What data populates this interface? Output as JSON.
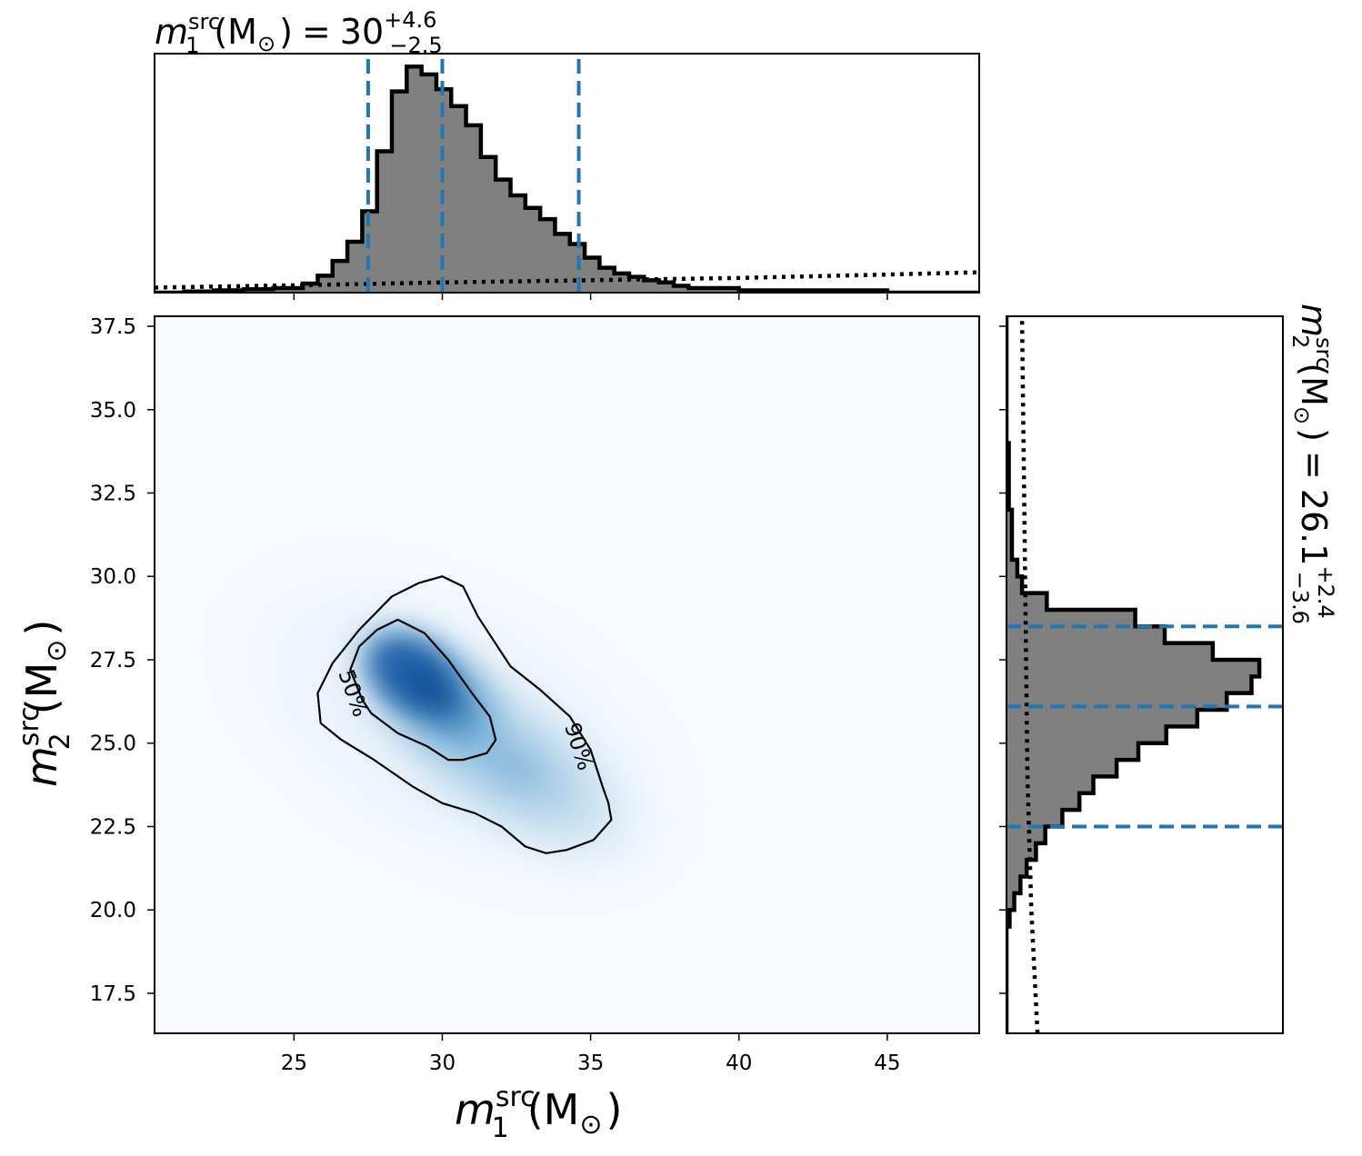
{
  "colors": {
    "hist_fill": "#808080",
    "hist_edge": "#000000",
    "quantile_line": "#1f77b4",
    "density_low": "#f7fbff",
    "density_high": "#08519c",
    "contour": "#000000"
  },
  "chart_data": [
    {
      "id": "m1_marginal",
      "type": "histogram",
      "title": {
        "base": "m",
        "sub": "1",
        "sup": "src",
        "unit": "(M",
        "odot": "⊙",
        "close": ")",
        "eq": "=",
        "median": "30",
        "plus": "+4.6",
        "minus": "−2.5"
      },
      "xlim": [
        20.3,
        48.1
      ],
      "x_ticks": [
        25,
        30,
        35,
        40,
        45
      ],
      "bins": [
        [
          20.3,
          0.0
        ],
        [
          21.3,
          0.1
        ],
        [
          22.3,
          0.2
        ],
        [
          23.3,
          0.3
        ],
        [
          24.3,
          0.4
        ],
        [
          25.3,
          0.8
        ],
        [
          25.8,
          1.5
        ],
        [
          26.3,
          2.8
        ],
        [
          26.8,
          4.5
        ],
        [
          27.3,
          7.2
        ],
        [
          27.8,
          12.5
        ],
        [
          28.3,
          17.8
        ],
        [
          28.8,
          20.0
        ],
        [
          29.3,
          19.3
        ],
        [
          29.8,
          18.0
        ],
        [
          30.3,
          16.5
        ],
        [
          30.8,
          14.8
        ],
        [
          31.3,
          12.0
        ],
        [
          31.8,
          10.0
        ],
        [
          32.3,
          8.6
        ],
        [
          32.8,
          7.5
        ],
        [
          33.3,
          6.5
        ],
        [
          33.8,
          5.2
        ],
        [
          34.3,
          4.3
        ],
        [
          34.8,
          3.1
        ],
        [
          35.3,
          2.2
        ],
        [
          35.8,
          1.7
        ],
        [
          36.3,
          1.4
        ],
        [
          36.8,
          1.1
        ],
        [
          37.3,
          0.9
        ],
        [
          37.8,
          0.6
        ],
        [
          38.3,
          0.4
        ],
        [
          40.0,
          0.2
        ],
        [
          45.0,
          0.0
        ]
      ],
      "prior_dotted": [
        [
          20.3,
          0.45
        ],
        [
          25.0,
          0.65
        ],
        [
          30.0,
          0.9
        ],
        [
          35.0,
          1.1
        ],
        [
          40.0,
          1.3
        ],
        [
          45.0,
          1.6
        ],
        [
          48.1,
          1.8
        ]
      ],
      "hist_max": 20.5,
      "quantiles": [
        27.5,
        30.0,
        34.6
      ]
    },
    {
      "id": "joint_density",
      "type": "heatmap",
      "xlabel": {
        "base": "m",
        "sub": "1",
        "sup": "src",
        "unit": "(M",
        "odot": "⊙",
        "close": ")"
      },
      "ylabel": {
        "base": "m",
        "sub": "2",
        "sup": "src",
        "unit": "(M",
        "odot": "⊙",
        "close": ")"
      },
      "xlim": [
        20.3,
        48.1
      ],
      "ylim": [
        16.3,
        37.8
      ],
      "x_ticks": [
        25,
        30,
        35,
        40,
        45
      ],
      "y_ticks": [
        "17.5",
        "20.0",
        "22.5",
        "25.0",
        "27.5",
        "30.0",
        "32.5",
        "35.0",
        "37.5"
      ],
      "peak": {
        "m1": 28.9,
        "m2": 26.9
      },
      "contours": [
        {
          "label": "50%",
          "points": [
            [
              28.5,
              28.7
            ],
            [
              29.4,
              28.3
            ],
            [
              30.2,
              27.5
            ],
            [
              31.0,
              26.5
            ],
            [
              31.6,
              25.8
            ],
            [
              31.8,
              25.1
            ],
            [
              31.5,
              24.7
            ],
            [
              30.7,
              24.5
            ],
            [
              30.2,
              24.5
            ],
            [
              29.5,
              24.9
            ],
            [
              28.5,
              25.3
            ],
            [
              27.6,
              25.9
            ],
            [
              27.3,
              26.3
            ],
            [
              26.9,
              27.2
            ],
            [
              27.2,
              27.9
            ],
            [
              27.8,
              28.4
            ],
            [
              28.5,
              28.7
            ]
          ],
          "label_at": [
            27.0,
            26.5
          ],
          "label_rotation": 70
        },
        {
          "label": "90%",
          "points": [
            [
              30.0,
              30.0
            ],
            [
              30.7,
              29.7
            ],
            [
              31.2,
              28.8
            ],
            [
              32.3,
              27.3
            ],
            [
              33.3,
              26.6
            ],
            [
              34.3,
              25.8
            ],
            [
              35.0,
              24.8
            ],
            [
              35.4,
              23.7
            ],
            [
              35.6,
              23.2
            ],
            [
              35.7,
              22.7
            ],
            [
              35.1,
              22.1
            ],
            [
              34.2,
              21.8
            ],
            [
              33.5,
              21.7
            ],
            [
              32.8,
              21.9
            ],
            [
              32.0,
              22.5
            ],
            [
              31.1,
              22.9
            ],
            [
              30.0,
              23.2
            ],
            [
              29.0,
              23.7
            ],
            [
              27.7,
              24.5
            ],
            [
              26.6,
              25.1
            ],
            [
              25.9,
              25.6
            ],
            [
              25.8,
              26.5
            ],
            [
              26.3,
              27.4
            ],
            [
              27.2,
              28.4
            ],
            [
              28.3,
              29.4
            ],
            [
              29.2,
              29.8
            ],
            [
              30.0,
              30.0
            ]
          ],
          "label_at": [
            34.6,
            24.9
          ],
          "label_rotation": 72
        }
      ]
    },
    {
      "id": "m2_marginal",
      "type": "histogram",
      "orientation": "horizontal",
      "title": {
        "base": "m",
        "sub": "2",
        "sup": "src",
        "unit": "(M",
        "odot": "⊙",
        "close": ")",
        "eq": "=",
        "median": "26.1",
        "plus": "+2.4",
        "minus": "−3.6"
      },
      "ylim": [
        16.3,
        37.8
      ],
      "bins": [
        [
          16.3,
          0.0
        ],
        [
          19.5,
          0.2
        ],
        [
          20.0,
          0.5
        ],
        [
          20.5,
          0.9
        ],
        [
          21.0,
          1.3
        ],
        [
          21.5,
          1.9
        ],
        [
          22.0,
          2.5
        ],
        [
          22.5,
          3.6
        ],
        [
          23.0,
          4.7
        ],
        [
          23.5,
          5.6
        ],
        [
          24.0,
          7.1
        ],
        [
          24.5,
          8.5
        ],
        [
          25.0,
          10.3
        ],
        [
          25.5,
          12.3
        ],
        [
          26.0,
          14.2
        ],
        [
          26.5,
          15.8
        ],
        [
          27.0,
          16.3
        ],
        [
          27.5,
          13.3
        ],
        [
          28.0,
          10.2
        ],
        [
          28.5,
          8.3
        ],
        [
          29.0,
          2.6
        ],
        [
          29.5,
          1.0
        ],
        [
          30.0,
          0.7
        ],
        [
          30.5,
          0.35
        ],
        [
          32.0,
          0.15
        ],
        [
          34.0,
          0.0
        ]
      ],
      "prior_dotted": [
        [
          16.3,
          2.0
        ],
        [
          20.0,
          1.6
        ],
        [
          24.0,
          1.35
        ],
        [
          28.0,
          1.25
        ],
        [
          32.0,
          1.15
        ],
        [
          37.8,
          1.0
        ]
      ],
      "hist_max": 17.0,
      "quantiles": [
        22.5,
        26.1,
        28.5
      ]
    }
  ]
}
